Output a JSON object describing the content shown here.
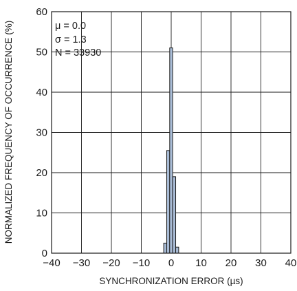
{
  "chart_data": {
    "type": "bar",
    "title": "",
    "xlabel": "SYNCHRONIZATION ERROR (µs)",
    "ylabel": "NORMALIZED FREQUENCY OF OCCURRENCE (%)",
    "xlim": [
      -40,
      40
    ],
    "ylim": [
      0,
      60
    ],
    "xticks": [
      "−40",
      "−30",
      "−20",
      "−10",
      "0",
      "10",
      "20",
      "30",
      "40"
    ],
    "yticks": [
      "0",
      "10",
      "20",
      "30",
      "40",
      "50",
      "60"
    ],
    "grid": true,
    "bin_width": 1,
    "bins": [
      {
        "x": -2,
        "value": 2.5
      },
      {
        "x": -1,
        "value": 25.5
      },
      {
        "x": 0,
        "value": 51
      },
      {
        "x": 1,
        "value": 19
      },
      {
        "x": 2,
        "value": 1.5
      }
    ],
    "annotations": {
      "mu": "μ = 0.0",
      "sigma": "σ = 1.3",
      "n": "N = 33930"
    },
    "colors": {
      "bar_fill": "#a9bcd6",
      "line": "#1a1a1a"
    }
  }
}
